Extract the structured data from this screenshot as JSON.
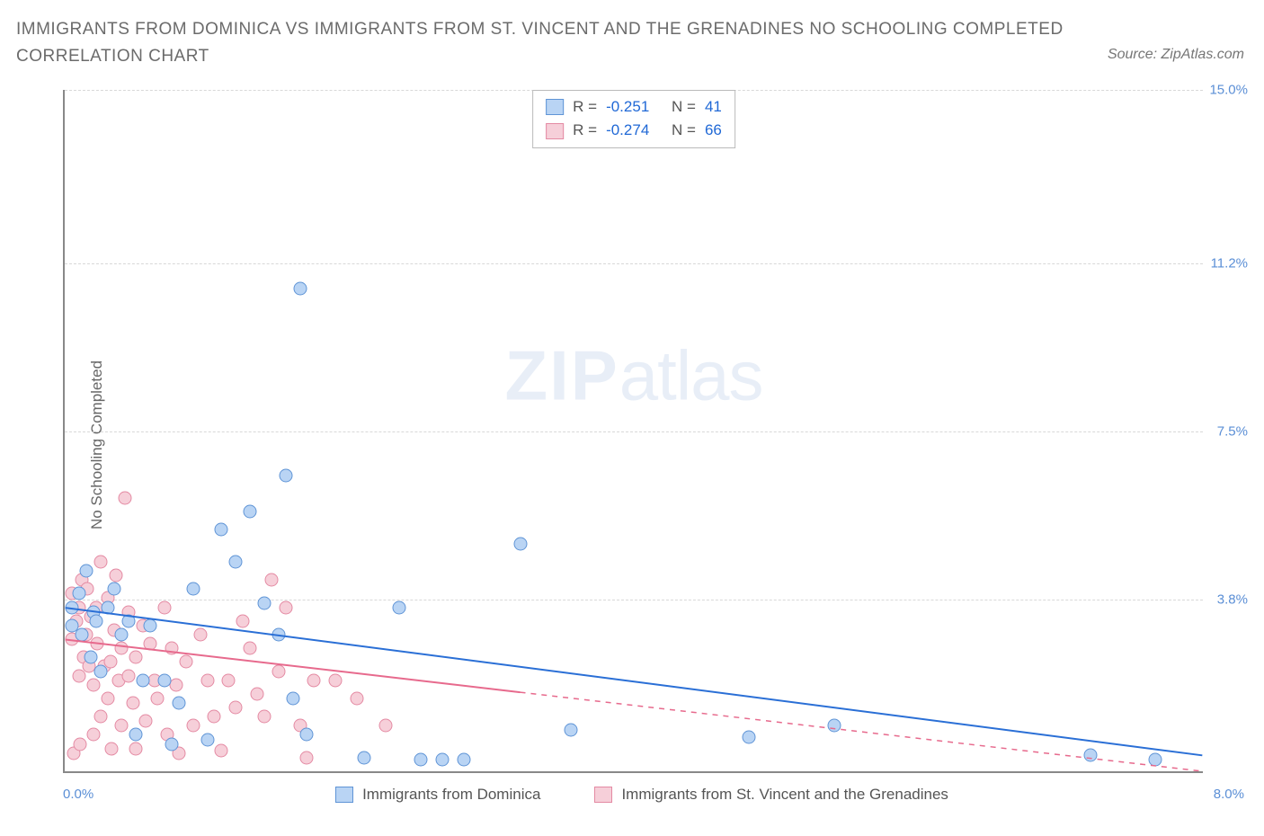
{
  "title_line1": "IMMIGRANTS FROM DOMINICA VS IMMIGRANTS FROM ST. VINCENT AND THE GRENADINES NO SCHOOLING COMPLETED",
  "title_line2": "CORRELATION CHART",
  "source_label": "Source: ZipAtlas.com",
  "y_axis_label": "No Schooling Completed",
  "watermark_bold": "ZIP",
  "watermark_light": "atlas",
  "chart": {
    "type": "scatter",
    "xlim": [
      0.0,
      8.0
    ],
    "ylim": [
      0.0,
      15.0
    ],
    "x_left_label": "0.0%",
    "x_right_label": "8.0%",
    "grid_color": "#d8d8d8",
    "axis_color": "#888888",
    "background_color": "#ffffff",
    "yticks": [
      {
        "v": 15.0,
        "label": "15.0%"
      },
      {
        "v": 11.2,
        "label": "11.2%"
      },
      {
        "v": 7.5,
        "label": "7.5%"
      },
      {
        "v": 3.8,
        "label": "3.8%"
      }
    ],
    "series": [
      {
        "id": "dominica",
        "name": "Immigrants from Dominica",
        "fill": "#b9d4f4",
        "stroke": "#5f94d6",
        "line_color": "#2a6fd6",
        "line_width": 2,
        "r_value": "-0.251",
        "n_value": "41",
        "trend": {
          "x1": 0.0,
          "y1": 3.6,
          "x2": 8.0,
          "y2": 0.35,
          "solid_until": 8.0
        },
        "points": [
          [
            0.05,
            3.6
          ],
          [
            0.05,
            3.2
          ],
          [
            0.1,
            3.9
          ],
          [
            0.12,
            3.0
          ],
          [
            0.15,
            4.4
          ],
          [
            0.18,
            2.5
          ],
          [
            0.2,
            3.5
          ],
          [
            0.22,
            3.3
          ],
          [
            0.25,
            2.2
          ],
          [
            0.3,
            3.6
          ],
          [
            0.35,
            4.0
          ],
          [
            0.4,
            3.0
          ],
          [
            0.45,
            3.3
          ],
          [
            0.5,
            0.8
          ],
          [
            0.55,
            2.0
          ],
          [
            0.6,
            3.2
          ],
          [
            0.7,
            2.0
          ],
          [
            0.75,
            0.6
          ],
          [
            0.8,
            1.5
          ],
          [
            0.9,
            4.0
          ],
          [
            1.0,
            0.7
          ],
          [
            1.1,
            5.3
          ],
          [
            1.2,
            4.6
          ],
          [
            1.3,
            5.7
          ],
          [
            1.4,
            3.7
          ],
          [
            1.5,
            3.0
          ],
          [
            1.55,
            6.5
          ],
          [
            1.6,
            1.6
          ],
          [
            1.65,
            10.6
          ],
          [
            1.7,
            0.8
          ],
          [
            2.1,
            0.3
          ],
          [
            2.35,
            3.6
          ],
          [
            2.5,
            0.25
          ],
          [
            2.65,
            0.25
          ],
          [
            2.8,
            0.25
          ],
          [
            3.2,
            5.0
          ],
          [
            3.55,
            0.9
          ],
          [
            4.8,
            0.75
          ],
          [
            5.4,
            1.0
          ],
          [
            7.2,
            0.35
          ],
          [
            7.65,
            0.25
          ]
        ]
      },
      {
        "id": "stvincent",
        "name": "Immigrants from St. Vincent and the Grenadines",
        "fill": "#f6cfd9",
        "stroke": "#e48aa3",
        "line_color": "#e76a8d",
        "line_width": 2,
        "r_value": "-0.274",
        "n_value": "66",
        "trend": {
          "x1": 0.0,
          "y1": 2.9,
          "x2": 8.0,
          "y2": 0.0,
          "solid_until": 3.2
        },
        "points": [
          [
            0.05,
            3.9
          ],
          [
            0.05,
            2.9
          ],
          [
            0.06,
            0.4
          ],
          [
            0.08,
            3.3
          ],
          [
            0.1,
            3.6
          ],
          [
            0.1,
            2.1
          ],
          [
            0.11,
            0.6
          ],
          [
            0.12,
            4.2
          ],
          [
            0.13,
            2.5
          ],
          [
            0.15,
            3.0
          ],
          [
            0.16,
            4.0
          ],
          [
            0.17,
            2.3
          ],
          [
            0.18,
            3.4
          ],
          [
            0.2,
            1.9
          ],
          [
            0.2,
            0.8
          ],
          [
            0.22,
            3.6
          ],
          [
            0.23,
            2.8
          ],
          [
            0.25,
            1.2
          ],
          [
            0.25,
            4.6
          ],
          [
            0.28,
            2.3
          ],
          [
            0.3,
            3.8
          ],
          [
            0.3,
            1.6
          ],
          [
            0.32,
            2.4
          ],
          [
            0.33,
            0.5
          ],
          [
            0.35,
            3.1
          ],
          [
            0.36,
            4.3
          ],
          [
            0.38,
            2.0
          ],
          [
            0.4,
            2.7
          ],
          [
            0.4,
            1.0
          ],
          [
            0.42,
            6.0
          ],
          [
            0.45,
            2.1
          ],
          [
            0.45,
            3.5
          ],
          [
            0.48,
            1.5
          ],
          [
            0.5,
            2.5
          ],
          [
            0.5,
            0.5
          ],
          [
            0.55,
            3.2
          ],
          [
            0.57,
            1.1
          ],
          [
            0.6,
            2.8
          ],
          [
            0.63,
            2.0
          ],
          [
            0.65,
            1.6
          ],
          [
            0.7,
            3.6
          ],
          [
            0.72,
            0.8
          ],
          [
            0.75,
            2.7
          ],
          [
            0.78,
            1.9
          ],
          [
            0.8,
            0.4
          ],
          [
            0.85,
            2.4
          ],
          [
            0.9,
            1.0
          ],
          [
            0.95,
            3.0
          ],
          [
            1.0,
            2.0
          ],
          [
            1.05,
            1.2
          ],
          [
            1.1,
            0.45
          ],
          [
            1.15,
            2.0
          ],
          [
            1.2,
            1.4
          ],
          [
            1.25,
            3.3
          ],
          [
            1.3,
            2.7
          ],
          [
            1.35,
            1.7
          ],
          [
            1.4,
            1.2
          ],
          [
            1.45,
            4.2
          ],
          [
            1.5,
            2.2
          ],
          [
            1.55,
            3.6
          ],
          [
            1.65,
            1.0
          ],
          [
            1.7,
            0.3
          ],
          [
            1.75,
            2.0
          ],
          [
            1.9,
            2.0
          ],
          [
            2.05,
            1.6
          ],
          [
            2.25,
            1.0
          ]
        ]
      }
    ]
  },
  "legend_labels": {
    "R": "R =",
    "N": "N ="
  }
}
